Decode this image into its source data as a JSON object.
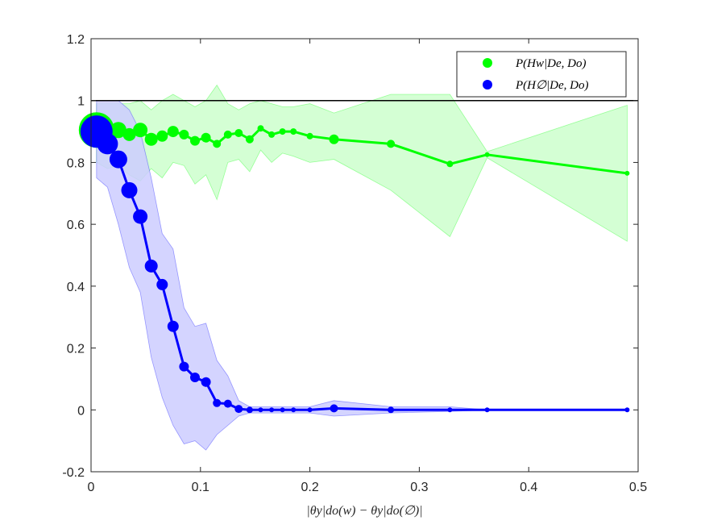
{
  "chart_data": {
    "type": "line",
    "xlabel": "|θy|do(w) − θy|do(∅)|",
    "ylabel": "",
    "title": "",
    "xlim": [
      0,
      0.5
    ],
    "ylim": [
      -0.2,
      1.2
    ],
    "xticks": [
      "0",
      "0.1",
      "0.2",
      "0.3",
      "0.4",
      "0.5"
    ],
    "xtick_values": [
      0,
      0.1,
      0.2,
      0.3,
      0.4,
      0.5
    ],
    "yticks": [
      "-0.2",
      "0",
      "0.2",
      "0.4",
      "0.6",
      "0.8",
      "1",
      "1.2"
    ],
    "ytick_values": [
      -0.2,
      0,
      0.2,
      0.4,
      0.6,
      0.8,
      1,
      1.2
    ],
    "grid": false,
    "legend_position": "top-right",
    "reference_line": {
      "y": 1,
      "color": "#000000"
    },
    "series": [
      {
        "name": "P(Hw|De, Do)",
        "color": "#00ff00",
        "band_color": "#ccffcc",
        "x": [
          0.005,
          0.015,
          0.025,
          0.035,
          0.045,
          0.055,
          0.065,
          0.075,
          0.085,
          0.095,
          0.105,
          0.115,
          0.125,
          0.135,
          0.145,
          0.155,
          0.165,
          0.175,
          0.185,
          0.2,
          0.222,
          0.274,
          0.328,
          0.362,
          0.49
        ],
        "y": [
          0.905,
          0.89,
          0.905,
          0.89,
          0.905,
          0.875,
          0.885,
          0.9,
          0.89,
          0.87,
          0.88,
          0.86,
          0.89,
          0.895,
          0.875,
          0.91,
          0.89,
          0.9,
          0.9,
          0.885,
          0.875,
          0.86,
          0.795,
          0.825,
          0.765
        ],
        "upper": [
          0.99,
          0.99,
          0.99,
          0.99,
          1.0,
          0.97,
          1.0,
          1.02,
          1.0,
          0.98,
          1.0,
          1.05,
          0.99,
          0.97,
          0.99,
          1.0,
          0.99,
          0.98,
          0.98,
          0.99,
          0.96,
          1.02,
          1.02,
          0.835,
          0.985
        ],
        "lower": [
          0.8,
          0.78,
          0.79,
          0.76,
          0.74,
          0.78,
          0.75,
          0.8,
          0.79,
          0.73,
          0.76,
          0.68,
          0.8,
          0.81,
          0.77,
          0.84,
          0.8,
          0.83,
          0.82,
          0.8,
          0.81,
          0.71,
          0.56,
          0.815,
          0.545
        ],
        "marker_sizes": [
          22,
          12,
          10,
          8,
          9,
          8,
          7,
          7,
          6,
          6,
          6,
          5,
          5,
          5,
          5,
          4,
          4,
          4,
          4,
          4,
          6,
          5,
          4,
          3,
          3
        ]
      },
      {
        "name": "P(H∅|De, Do)",
        "color": "#0000ff",
        "band_color": "#ccccff",
        "x": [
          0.005,
          0.015,
          0.025,
          0.035,
          0.045,
          0.055,
          0.065,
          0.075,
          0.085,
          0.095,
          0.105,
          0.115,
          0.125,
          0.135,
          0.145,
          0.155,
          0.165,
          0.175,
          0.185,
          0.2,
          0.222,
          0.274,
          0.328,
          0.362,
          0.49
        ],
        "y": [
          0.9,
          0.86,
          0.81,
          0.71,
          0.625,
          0.465,
          0.405,
          0.27,
          0.14,
          0.105,
          0.09,
          0.022,
          0.02,
          0.003,
          0.0,
          0.0,
          0.0,
          0.0,
          0.0,
          0.0,
          0.005,
          0.0,
          0.0,
          0.0,
          0.0
        ],
        "upper": [
          1.0,
          1.0,
          1.0,
          0.97,
          0.9,
          0.75,
          0.57,
          0.52,
          0.33,
          0.27,
          0.28,
          0.16,
          0.11,
          0.03,
          0.01,
          0.01,
          0.01,
          0.01,
          0.01,
          0.01,
          0.03,
          0.01,
          0.01,
          0.0,
          0.0
        ],
        "lower": [
          0.75,
          0.72,
          0.6,
          0.46,
          0.38,
          0.17,
          0.04,
          -0.05,
          -0.11,
          -0.1,
          -0.13,
          -0.08,
          -0.05,
          -0.02,
          -0.01,
          -0.01,
          -0.01,
          -0.01,
          -0.01,
          -0.01,
          -0.02,
          -0.01,
          -0.005,
          0.0,
          0.0
        ],
        "marker_sizes": [
          20,
          13,
          11,
          10,
          9,
          8,
          7,
          7,
          6,
          6,
          6,
          5,
          5,
          5,
          4,
          3,
          3,
          3,
          3,
          3,
          5,
          4,
          3,
          3,
          3
        ]
      }
    ]
  }
}
